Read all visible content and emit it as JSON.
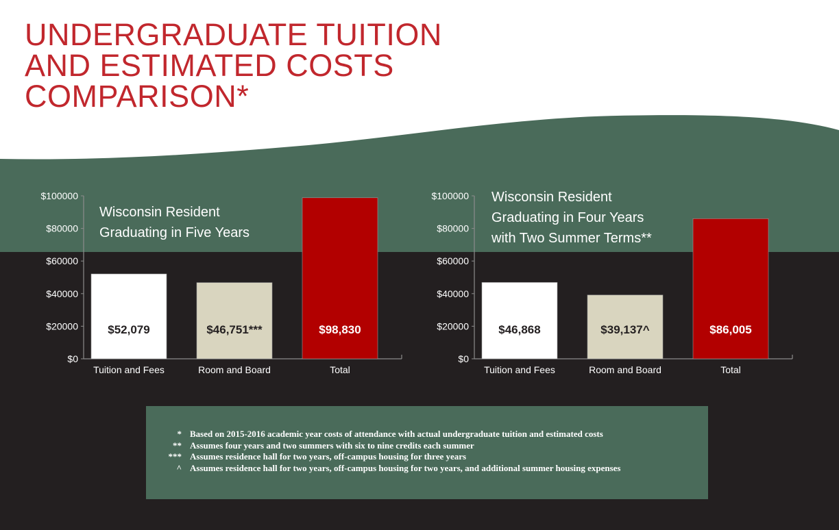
{
  "title_lines": [
    "UNDERGRADUATE TUITION",
    "AND ESTIMATED COSTS",
    "COMPARISON*"
  ],
  "colors": {
    "title": "#c1272d",
    "green_band": "#4a6b5a",
    "dark_background": "#231f20",
    "tuition_bar": "#ffffff",
    "room_bar": "#d9d5bf",
    "total_bar": "#b20000"
  },
  "chart_data": [
    {
      "type": "bar",
      "title_lines": [
        "Wisconsin Resident",
        "Graduating in Five Years"
      ],
      "categories": [
        "Tuition and Fees",
        "Room and Board",
        "Total"
      ],
      "values": [
        52079,
        46751,
        98830
      ],
      "value_labels": [
        "$52,079",
        "$46,751***",
        "$98,830"
      ],
      "bar_colors": [
        "#ffffff",
        "#d9d5bf",
        "#b20000"
      ],
      "label_colors": [
        "#231f20",
        "#231f20",
        "#ffffff"
      ],
      "yticks": [
        0,
        20000,
        40000,
        60000,
        80000,
        100000
      ],
      "ytick_labels": [
        "$0",
        "$20000",
        "$40000",
        "$60000",
        "$80000",
        "$100000"
      ],
      "ylim": [
        0,
        100000
      ],
      "xlabel": "",
      "ylabel": "",
      "grid": false,
      "legend": "none"
    },
    {
      "type": "bar",
      "title_lines": [
        "Wisconsin Resident",
        "Graduating in Four Years",
        "with Two Summer Terms**"
      ],
      "categories": [
        "Tuition and Fees",
        "Room and Board",
        "Total"
      ],
      "values": [
        46868,
        39137,
        86005
      ],
      "value_labels": [
        "$46,868",
        "$39,137^",
        "$86,005"
      ],
      "bar_colors": [
        "#ffffff",
        "#d9d5bf",
        "#b20000"
      ],
      "label_colors": [
        "#231f20",
        "#231f20",
        "#ffffff"
      ],
      "yticks": [
        0,
        20000,
        40000,
        60000,
        80000,
        100000
      ],
      "ytick_labels": [
        "$0",
        "$20000",
        "$40000",
        "$60000",
        "$80000",
        "$100000"
      ],
      "ylim": [
        0,
        100000
      ],
      "xlabel": "",
      "ylabel": "",
      "grid": false,
      "legend": "none"
    }
  ],
  "footnotes": [
    {
      "mark": "*",
      "text": "Based on 2015-2016 academic year costs of attendance with actual undergraduate tuition and estimated costs"
    },
    {
      "mark": "**",
      "text": "Assumes four years and two summers with six to nine credits each summer"
    },
    {
      "mark": "***",
      "text": "Assumes residence hall for two years, off-campus housing for three years"
    },
    {
      "mark": "^",
      "text": "Assumes residence hall for two years, off-campus housing for two years, and additional summer housing expenses"
    }
  ]
}
